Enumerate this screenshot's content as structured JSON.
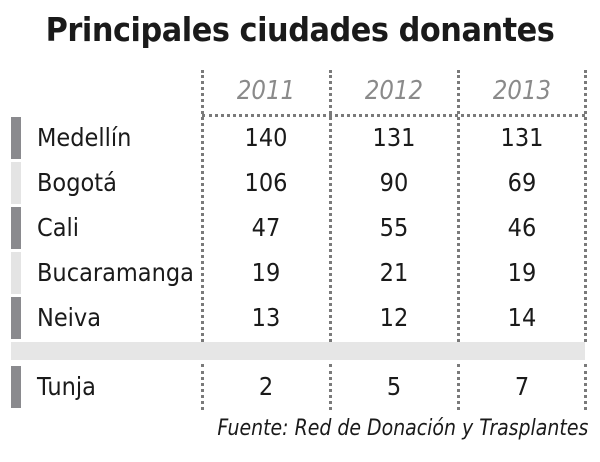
{
  "chart_data": {
    "type": "table",
    "title": "Principales ciudades donantes",
    "columns": [
      "2011",
      "2012",
      "2013"
    ],
    "rows": [
      {
        "city": "Medellín",
        "values": [
          "140",
          "131",
          "131"
        ],
        "shade": "#8a8a8e"
      },
      {
        "city": "Bogotá",
        "values": [
          "106",
          "90",
          "69"
        ],
        "shade": "#e4e4e4"
      },
      {
        "city": "Cali",
        "values": [
          "47",
          "55",
          "46"
        ],
        "shade": "#8a8a8e"
      },
      {
        "city": "Bucaramanga",
        "values": [
          "19",
          "21",
          "19"
        ],
        "shade": "#e4e4e4"
      },
      {
        "city": "Neiva",
        "values": [
          "13",
          "12",
          "14"
        ],
        "shade": "#8a8a8e"
      },
      {
        "city": "Tunja",
        "values": [
          "2",
          "5",
          "7"
        ],
        "shade": "#8a8a8e"
      }
    ],
    "source": "Fuente: Red de Donación y Trasplantes"
  }
}
